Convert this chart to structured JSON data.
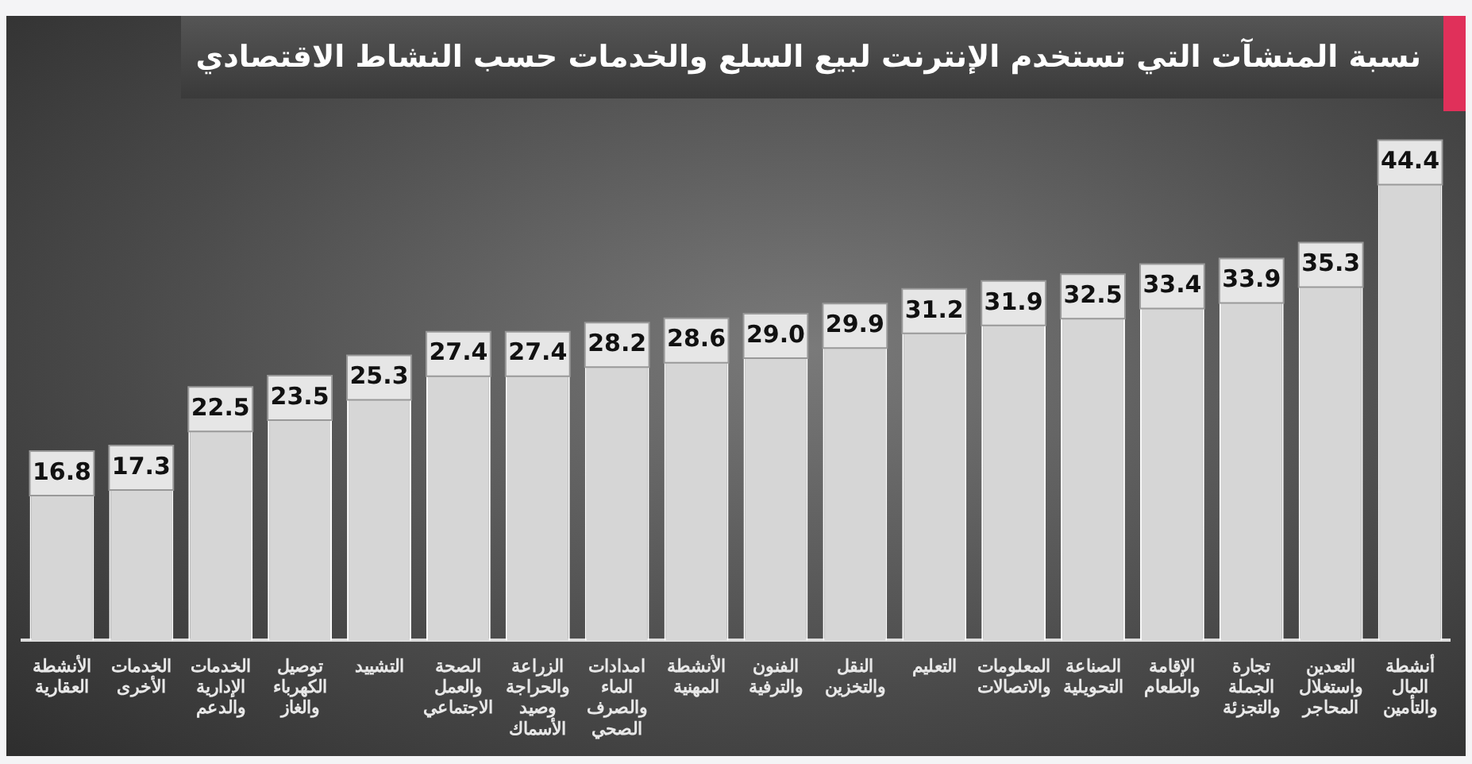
{
  "chart_data": {
    "type": "bar",
    "title": "نسبة المنشآت التي تستخدم الإنترنت لبيع السلع والخدمات حسب النشاط الاقتصادي",
    "categories": [
      "الأنشطة العقارية",
      "الخدمات الأخرى",
      "الخدمات الإدارية والدعم",
      "توصيل الكهرباء والغاز",
      "التشييد",
      "الصحة والعمل الاجتماعي",
      "الزراعة والحراجة وصيد الأسماك",
      "امدادات الماء والصرف الصحي",
      "الأنشطة المهنية",
      "الفنون والترفية",
      "النقل والتخزين",
      "التعليم",
      "المعلومات والاتصالات",
      "الصناعة التحويلية",
      "الإقامة والطعام",
      "تجارة الجملة والتجزئة",
      "التعدين واستغلال المحاجر",
      "أنشطة المال والتأمين"
    ],
    "values": [
      16.8,
      17.3,
      22.5,
      23.5,
      25.3,
      27.4,
      27.4,
      28.2,
      28.6,
      29.0,
      29.9,
      31.2,
      31.9,
      32.5,
      33.4,
      33.9,
      35.3,
      44.4
    ],
    "value_labels": [
      "16.8",
      "17.3",
      "22.5",
      "23.5",
      "25.3",
      "27.4",
      "27.4",
      "28.2",
      "28.6",
      "29.0",
      "29.9",
      "31.2",
      "31.9",
      "32.5",
      "33.4",
      "33.9",
      "35.3",
      "44.4"
    ],
    "color": "#d6d6d6",
    "tick_labels": "x",
    "grid": false
  }
}
